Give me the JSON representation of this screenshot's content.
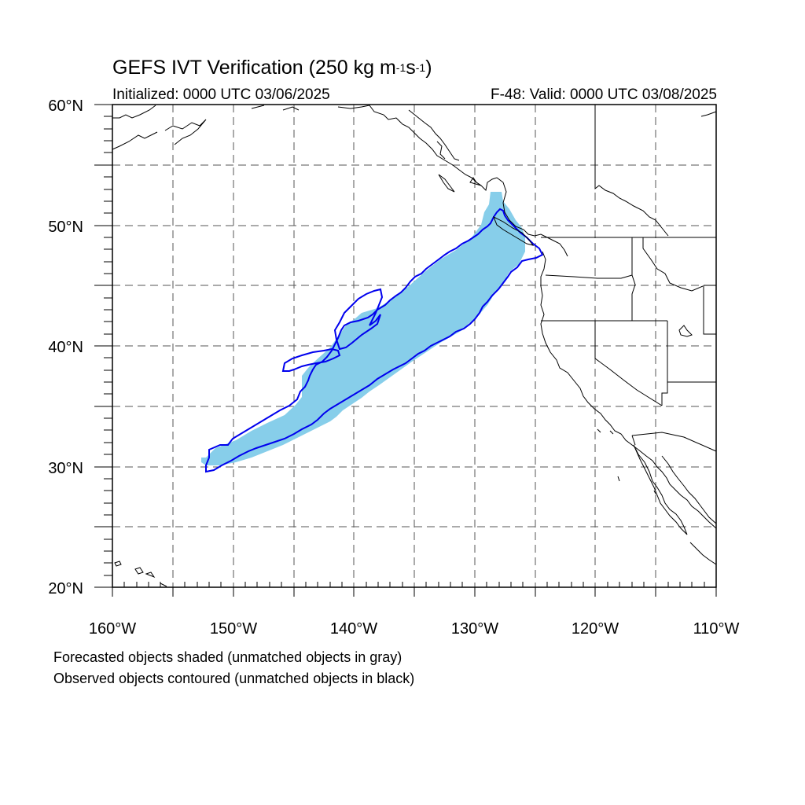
{
  "header": {
    "title_main": "GEFS IVT Verification (250 kg m",
    "title_exp1": "-1",
    "title_mid": "s",
    "title_exp2": "-1",
    "title_end": ")",
    "initialized": "Initialized: 0000 UTC 03/06/2025",
    "valid": "F-48: Valid: 0000 UTC 03/08/2025"
  },
  "map": {
    "lon_range": [
      -160,
      -110
    ],
    "lat_range": [
      20,
      60
    ],
    "lon_labels": [
      "160°W",
      "150°W",
      "140°W",
      "130°W",
      "120°W",
      "110°W"
    ],
    "lat_labels": [
      "20°N",
      "30°N",
      "40°N",
      "50°N",
      "60°N"
    ],
    "grid": "dashed every 5 degrees",
    "colors": {
      "forecast_fill": "#87ceea",
      "observed_contour": "#0000ee",
      "coastline": "#000000",
      "grid": "#555555"
    }
  },
  "footer": {
    "line1": "Forecasted objects shaded (unmatched objects in gray)",
    "line2": "Observed objects contoured (unmatched objects in black)"
  }
}
